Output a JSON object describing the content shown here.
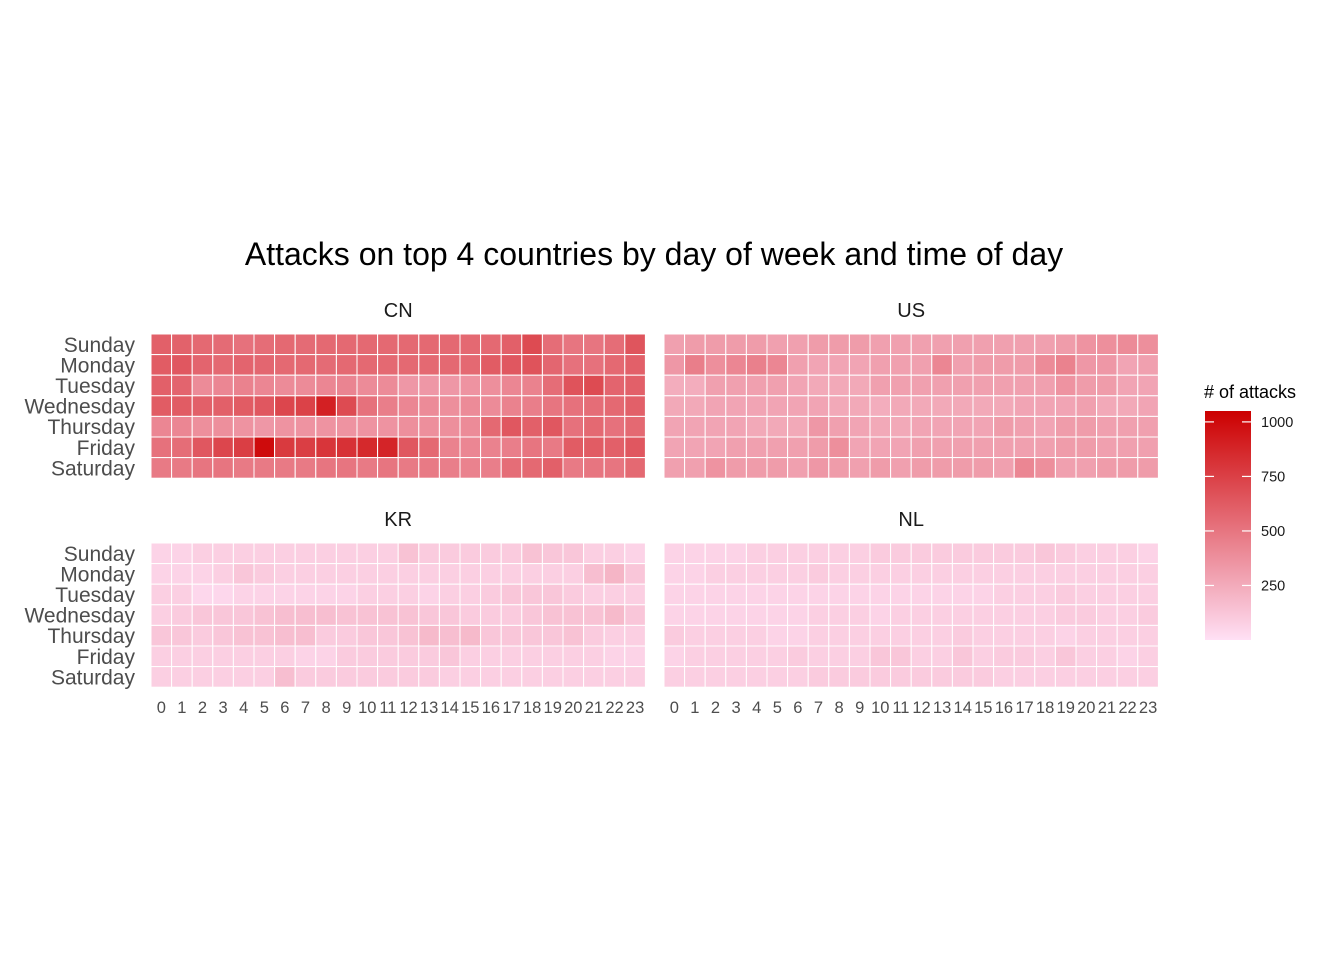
{
  "chart_data": {
    "type": "heatmap",
    "title": "Attacks on top 4 countries by day of week and time of day",
    "x": [
      "0",
      "1",
      "2",
      "3",
      "4",
      "5",
      "6",
      "7",
      "8",
      "9",
      "10",
      "11",
      "12",
      "13",
      "14",
      "15",
      "16",
      "17",
      "18",
      "19",
      "20",
      "21",
      "22",
      "23"
    ],
    "y": [
      "Sunday",
      "Monday",
      "Tuesday",
      "Wednesday",
      "Thursday",
      "Friday",
      "Saturday"
    ],
    "color_scale": {
      "low": "#FFE0F5",
      "high": "#CC0000",
      "min": 0,
      "max": 1050
    },
    "legend": {
      "title": "# of attacks",
      "ticks": [
        250,
        500,
        750,
        1000
      ],
      "position": "right"
    },
    "panels": [
      {
        "name": "CN",
        "values": [
          [
            600,
            590,
            560,
            550,
            520,
            540,
            560,
            550,
            560,
            560,
            560,
            560,
            560,
            560,
            560,
            560,
            560,
            600,
            700,
            540,
            500,
            500,
            540,
            650
          ],
          [
            620,
            640,
            580,
            560,
            580,
            570,
            560,
            560,
            550,
            560,
            560,
            560,
            560,
            560,
            560,
            560,
            620,
            640,
            660,
            570,
            520,
            520,
            560,
            600
          ],
          [
            600,
            580,
            400,
            420,
            440,
            420,
            400,
            400,
            420,
            430,
            400,
            400,
            340,
            340,
            340,
            360,
            380,
            420,
            440,
            540,
            660,
            700,
            580,
            600
          ],
          [
            620,
            620,
            600,
            600,
            620,
            640,
            720,
            740,
            900,
            700,
            520,
            460,
            420,
            400,
            380,
            400,
            400,
            440,
            460,
            500,
            520,
            540,
            560,
            600
          ],
          [
            420,
            420,
            380,
            380,
            360,
            340,
            360,
            360,
            360,
            360,
            360,
            360,
            380,
            380,
            380,
            400,
            560,
            640,
            600,
            640,
            520,
            560,
            520,
            560
          ],
          [
            520,
            540,
            640,
            720,
            760,
            1000,
            780,
            760,
            800,
            820,
            860,
            880,
            640,
            560,
            440,
            420,
            440,
            460,
            500,
            480,
            620,
            620,
            600,
            640
          ],
          [
            480,
            480,
            500,
            500,
            480,
            480,
            480,
            480,
            500,
            500,
            480,
            500,
            480,
            480,
            460,
            440,
            460,
            540,
            560,
            600,
            480,
            500,
            500,
            560
          ]
        ]
      },
      {
        "name": "US",
        "values": [
          [
            300,
            320,
            320,
            320,
            320,
            300,
            300,
            320,
            320,
            320,
            300,
            300,
            300,
            300,
            300,
            300,
            300,
            300,
            300,
            320,
            360,
            380,
            400,
            380
          ],
          [
            340,
            460,
            380,
            420,
            450,
            420,
            300,
            280,
            280,
            280,
            300,
            300,
            300,
            420,
            300,
            320,
            320,
            320,
            400,
            440,
            340,
            340,
            280,
            300
          ],
          [
            240,
            240,
            300,
            300,
            300,
            300,
            280,
            260,
            260,
            260,
            300,
            300,
            300,
            300,
            300,
            300,
            300,
            300,
            300,
            360,
            320,
            320,
            280,
            280
          ],
          [
            260,
            260,
            280,
            280,
            280,
            280,
            280,
            280,
            260,
            260,
            240,
            260,
            260,
            260,
            260,
            260,
            260,
            280,
            280,
            280,
            300,
            260,
            260,
            280
          ],
          [
            280,
            280,
            280,
            280,
            260,
            260,
            260,
            340,
            300,
            280,
            260,
            260,
            280,
            280,
            280,
            280,
            320,
            300,
            280,
            320,
            320,
            300,
            300,
            300
          ],
          [
            280,
            280,
            280,
            300,
            300,
            300,
            300,
            320,
            380,
            280,
            280,
            280,
            300,
            300,
            300,
            300,
            300,
            300,
            300,
            320,
            320,
            300,
            300,
            300
          ],
          [
            300,
            300,
            360,
            320,
            320,
            320,
            300,
            340,
            320,
            300,
            320,
            300,
            320,
            320,
            320,
            320,
            300,
            420,
            380,
            300,
            300,
            320,
            320,
            320
          ]
        ]
      },
      {
        "name": "KR",
        "values": [
          [
            60,
            60,
            80,
            80,
            80,
            80,
            80,
            80,
            80,
            80,
            80,
            80,
            140,
            100,
            100,
            100,
            100,
            100,
            140,
            120,
            120,
            80,
            80,
            60
          ],
          [
            60,
            60,
            60,
            80,
            120,
            100,
            80,
            80,
            80,
            80,
            80,
            80,
            80,
            80,
            80,
            80,
            80,
            80,
            80,
            80,
            80,
            160,
            200,
            120
          ],
          [
            80,
            80,
            40,
            40,
            60,
            60,
            60,
            60,
            60,
            60,
            80,
            80,
            80,
            60,
            80,
            80,
            100,
            120,
            120,
            120,
            100,
            80,
            80,
            80
          ],
          [
            80,
            100,
            120,
            120,
            120,
            140,
            160,
            160,
            160,
            140,
            140,
            140,
            140,
            120,
            120,
            100,
            100,
            100,
            120,
            140,
            140,
            140,
            180,
            120
          ],
          [
            120,
            120,
            100,
            120,
            140,
            140,
            160,
            160,
            100,
            100,
            120,
            120,
            140,
            180,
            160,
            180,
            120,
            120,
            120,
            120,
            140,
            100,
            80,
            80
          ],
          [
            80,
            80,
            80,
            80,
            80,
            80,
            80,
            60,
            60,
            100,
            100,
            100,
            100,
            100,
            120,
            80,
            80,
            80,
            80,
            80,
            80,
            80,
            60,
            60
          ],
          [
            80,
            80,
            80,
            80,
            80,
            80,
            160,
            100,
            100,
            100,
            100,
            100,
            100,
            100,
            80,
            80,
            80,
            80,
            80,
            80,
            80,
            80,
            80,
            80
          ]
        ]
      },
      {
        "name": "NL",
        "values": [
          [
            60,
            60,
            60,
            60,
            80,
            80,
            80,
            80,
            80,
            80,
            100,
            100,
            100,
            100,
            100,
            100,
            100,
            100,
            120,
            100,
            80,
            80,
            80,
            60
          ],
          [
            60,
            60,
            80,
            80,
            80,
            80,
            80,
            100,
            80,
            80,
            80,
            80,
            80,
            80,
            80,
            80,
            80,
            80,
            80,
            80,
            80,
            80,
            80,
            80
          ],
          [
            60,
            60,
            60,
            60,
            60,
            60,
            60,
            60,
            60,
            60,
            60,
            60,
            60,
            60,
            60,
            60,
            80,
            80,
            80,
            100,
            80,
            80,
            80,
            80
          ],
          [
            60,
            60,
            60,
            60,
            60,
            60,
            60,
            80,
            80,
            80,
            60,
            80,
            80,
            80,
            80,
            80,
            80,
            80,
            80,
            100,
            100,
            80,
            80,
            100
          ],
          [
            100,
            80,
            80,
            80,
            80,
            60,
            60,
            80,
            80,
            80,
            80,
            80,
            80,
            80,
            100,
            80,
            80,
            80,
            80,
            60,
            80,
            80,
            80,
            80
          ],
          [
            60,
            80,
            80,
            80,
            80,
            80,
            100,
            80,
            80,
            80,
            120,
            120,
            80,
            80,
            120,
            80,
            100,
            100,
            80,
            120,
            80,
            80,
            60,
            80
          ],
          [
            80,
            80,
            80,
            80,
            80,
            80,
            80,
            100,
            100,
            100,
            100,
            100,
            100,
            100,
            100,
            100,
            80,
            80,
            80,
            80,
            80,
            80,
            80,
            80
          ]
        ]
      }
    ]
  }
}
